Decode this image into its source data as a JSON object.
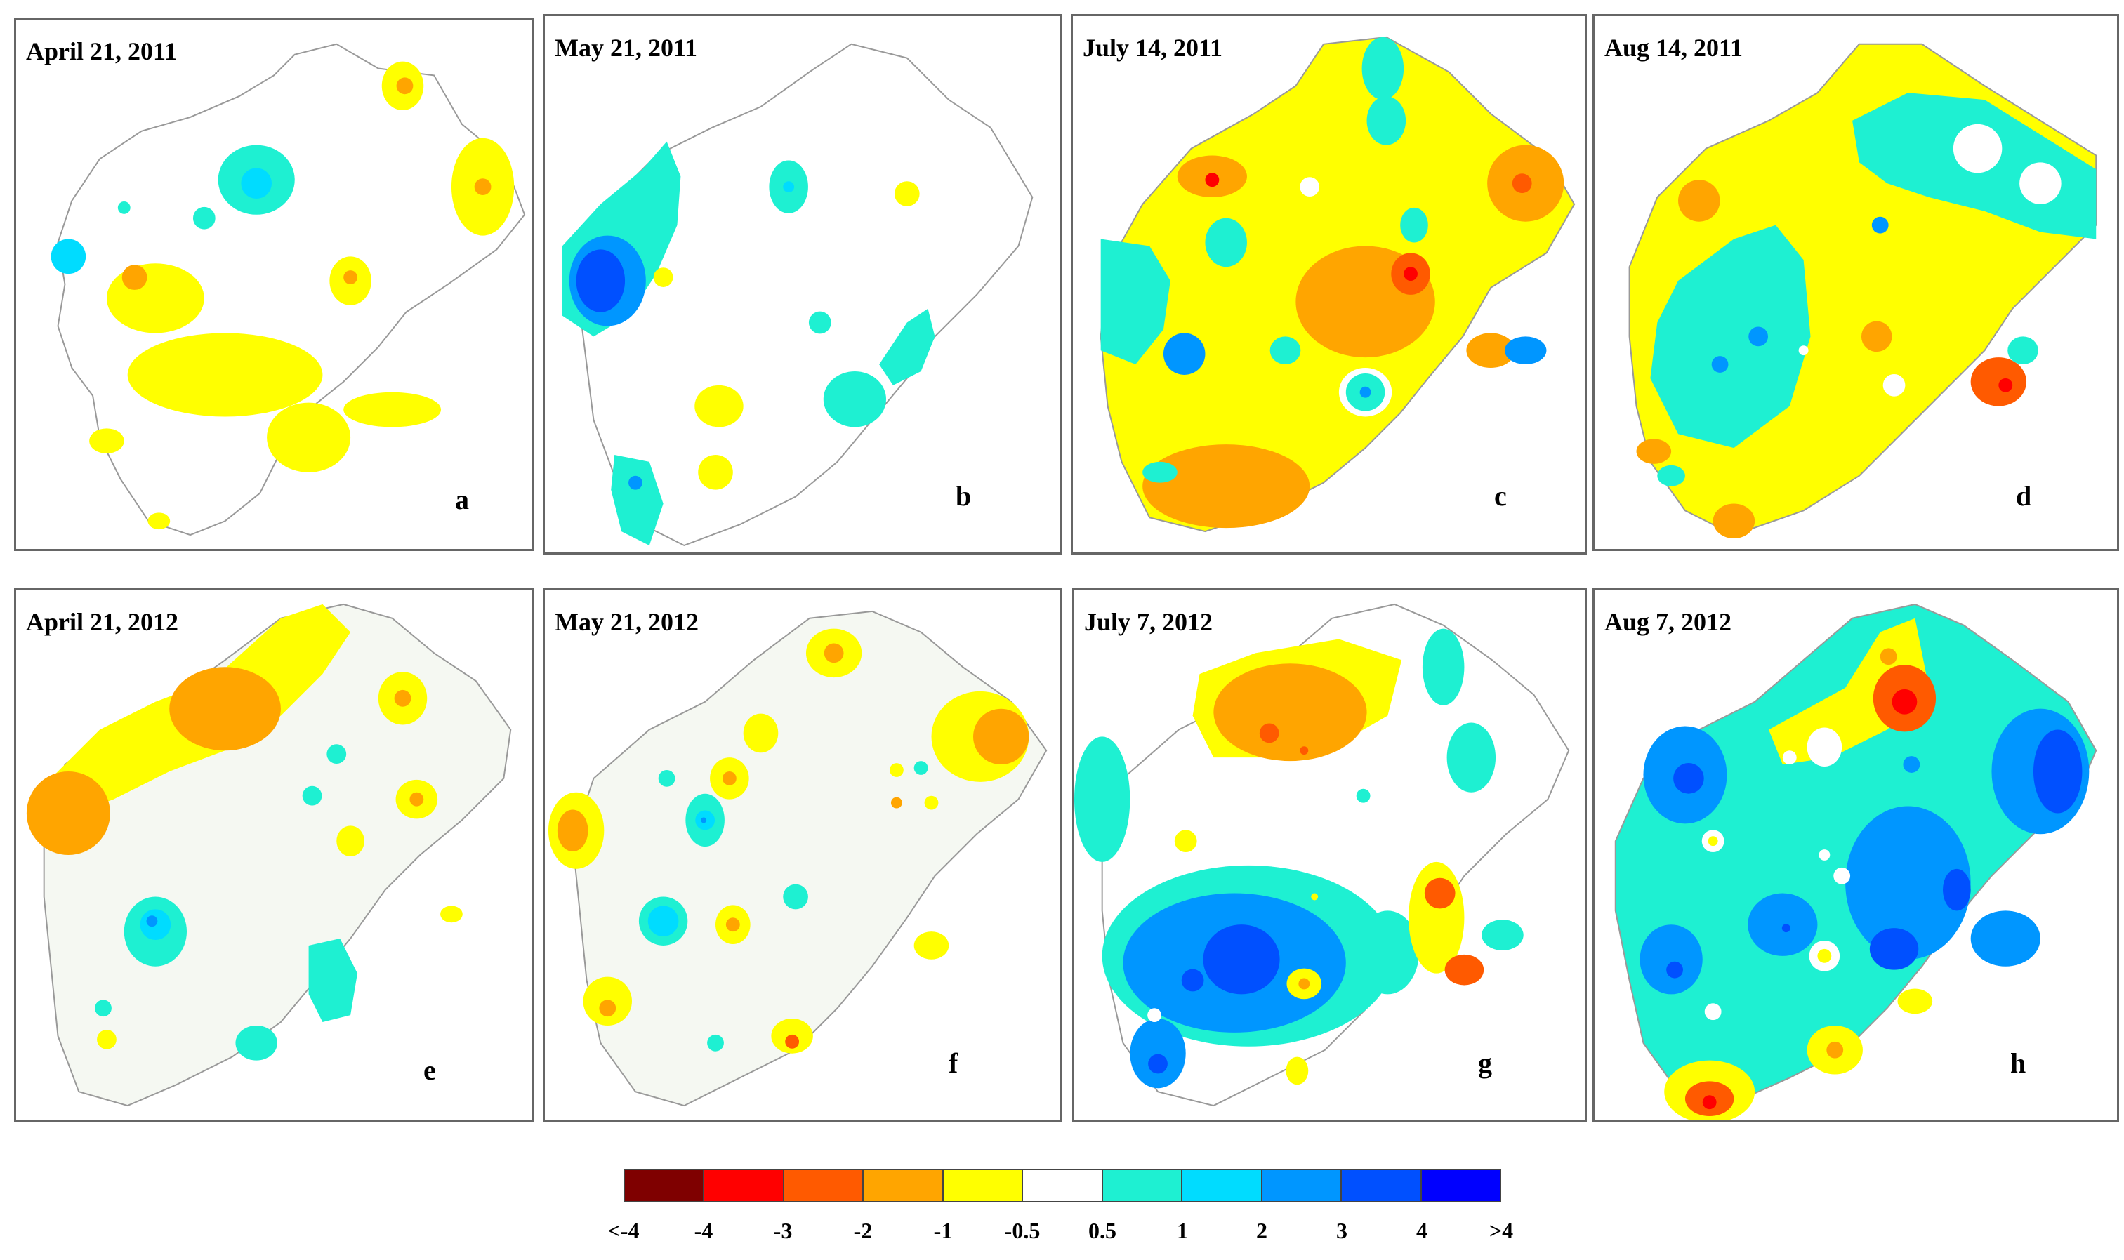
{
  "panels": [
    {
      "title": "April 21, 2011",
      "label": "a",
      "bg": "#ffffff"
    },
    {
      "title": "May 21, 2011",
      "label": "b",
      "bg": "#ffffff"
    },
    {
      "title": "July 14, 2011",
      "label": "c",
      "bg": "#ffffff"
    },
    {
      "title": "Aug 14, 2011",
      "label": "d",
      "bg": "#ffffff"
    },
    {
      "title": "April 21, 2012",
      "label": "e",
      "bg": "#f5f8f2"
    },
    {
      "title": "May 21, 2012",
      "label": "f",
      "bg": "#f5f8f2"
    },
    {
      "title": "July 7, 2012",
      "label": "g",
      "bg": "#ffffff"
    },
    {
      "title": "Aug 7, 2012",
      "label": "h",
      "bg": "#ffffff"
    }
  ],
  "legend": {
    "colors": [
      "#7f0000",
      "#ff0000",
      "#ff5a00",
      "#ffa500",
      "#ffff00",
      "#ffffff",
      "#1ef0d2",
      "#00dcff",
      "#0096ff",
      "#0050ff",
      "#0000ff"
    ],
    "ticks": [
      "<-4",
      "-4",
      "-3",
      "-2",
      "-1",
      "-0.5",
      "0.5",
      "1",
      "2",
      "3",
      "4",
      ">4"
    ]
  }
}
